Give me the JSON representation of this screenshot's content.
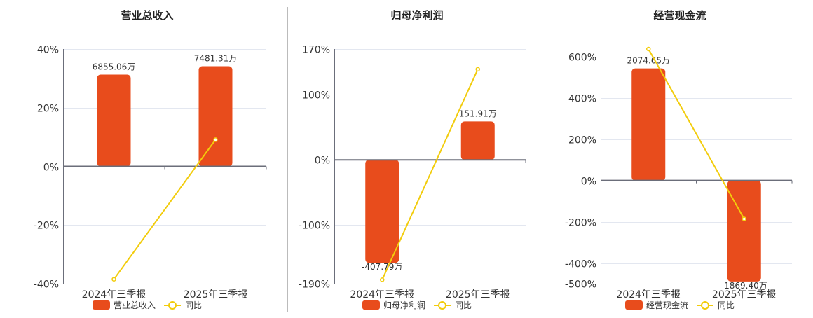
{
  "colors": {
    "bar": "#e84c1c",
    "line": "#f2cc0c",
    "grid": "#e3e7f0",
    "axis": "#6b6e7a",
    "separator": "#bbbbbb"
  },
  "chart_data": [
    {
      "type": "bar+line",
      "title": "营业总收入",
      "categories": [
        "2024年三季报",
        "2025年三季报"
      ],
      "bar_series": {
        "name": "营业总收入",
        "values": [
          6855.06,
          7481.31
        ],
        "labels": [
          "6855.06万",
          "7481.31万"
        ],
        "unit": "万"
      },
      "line_series": {
        "name": "同比",
        "values": [
          -38.5,
          9.1
        ],
        "unit": "%"
      },
      "ylim": [
        -40,
        40
      ],
      "yticks": [
        40,
        20,
        0,
        -20,
        -40
      ],
      "ytick_labels": [
        "40%",
        "20%",
        "0%",
        "-20%",
        "-40%"
      ],
      "grid": true,
      "legend": "bottom"
    },
    {
      "type": "bar+line",
      "title": "归母净利润",
      "categories": [
        "2024年三季报",
        "2025年三季报"
      ],
      "bar_series": {
        "name": "归母净利润",
        "values": [
          -407.79,
          151.91
        ],
        "labels": [
          "-407.79万",
          "151.91万"
        ],
        "unit": "万"
      },
      "line_series": {
        "name": "同比",
        "values": [
          -184,
          139
        ],
        "unit": "%"
      },
      "ylim": [
        -190,
        170
      ],
      "yticks": [
        170,
        100,
        0,
        -100,
        -190
      ],
      "ytick_labels": [
        "170%",
        "100%",
        "0%",
        "-100%",
        "-190%"
      ],
      "grid": true,
      "legend": "bottom"
    },
    {
      "type": "bar+line",
      "title": "经营现金流",
      "categories": [
        "2024年三季报",
        "2025年三季报"
      ],
      "bar_series": {
        "name": "经营现金流",
        "values": [
          2074.65,
          -1869.4
        ],
        "labels": [
          "2074.65万",
          "-1869.40万"
        ],
        "unit": "万"
      },
      "line_series": {
        "name": "同比",
        "values": [
          637,
          -186
        ],
        "unit": "%"
      },
      "ylim": [
        -500,
        637
      ],
      "yticks": [
        600,
        400,
        200,
        0,
        -200,
        -400,
        -500
      ],
      "ytick_labels": [
        "600%",
        "400%",
        "200%",
        "0%",
        "-200%",
        "-400%",
        "-500%"
      ],
      "grid": true,
      "legend": "bottom"
    }
  ]
}
